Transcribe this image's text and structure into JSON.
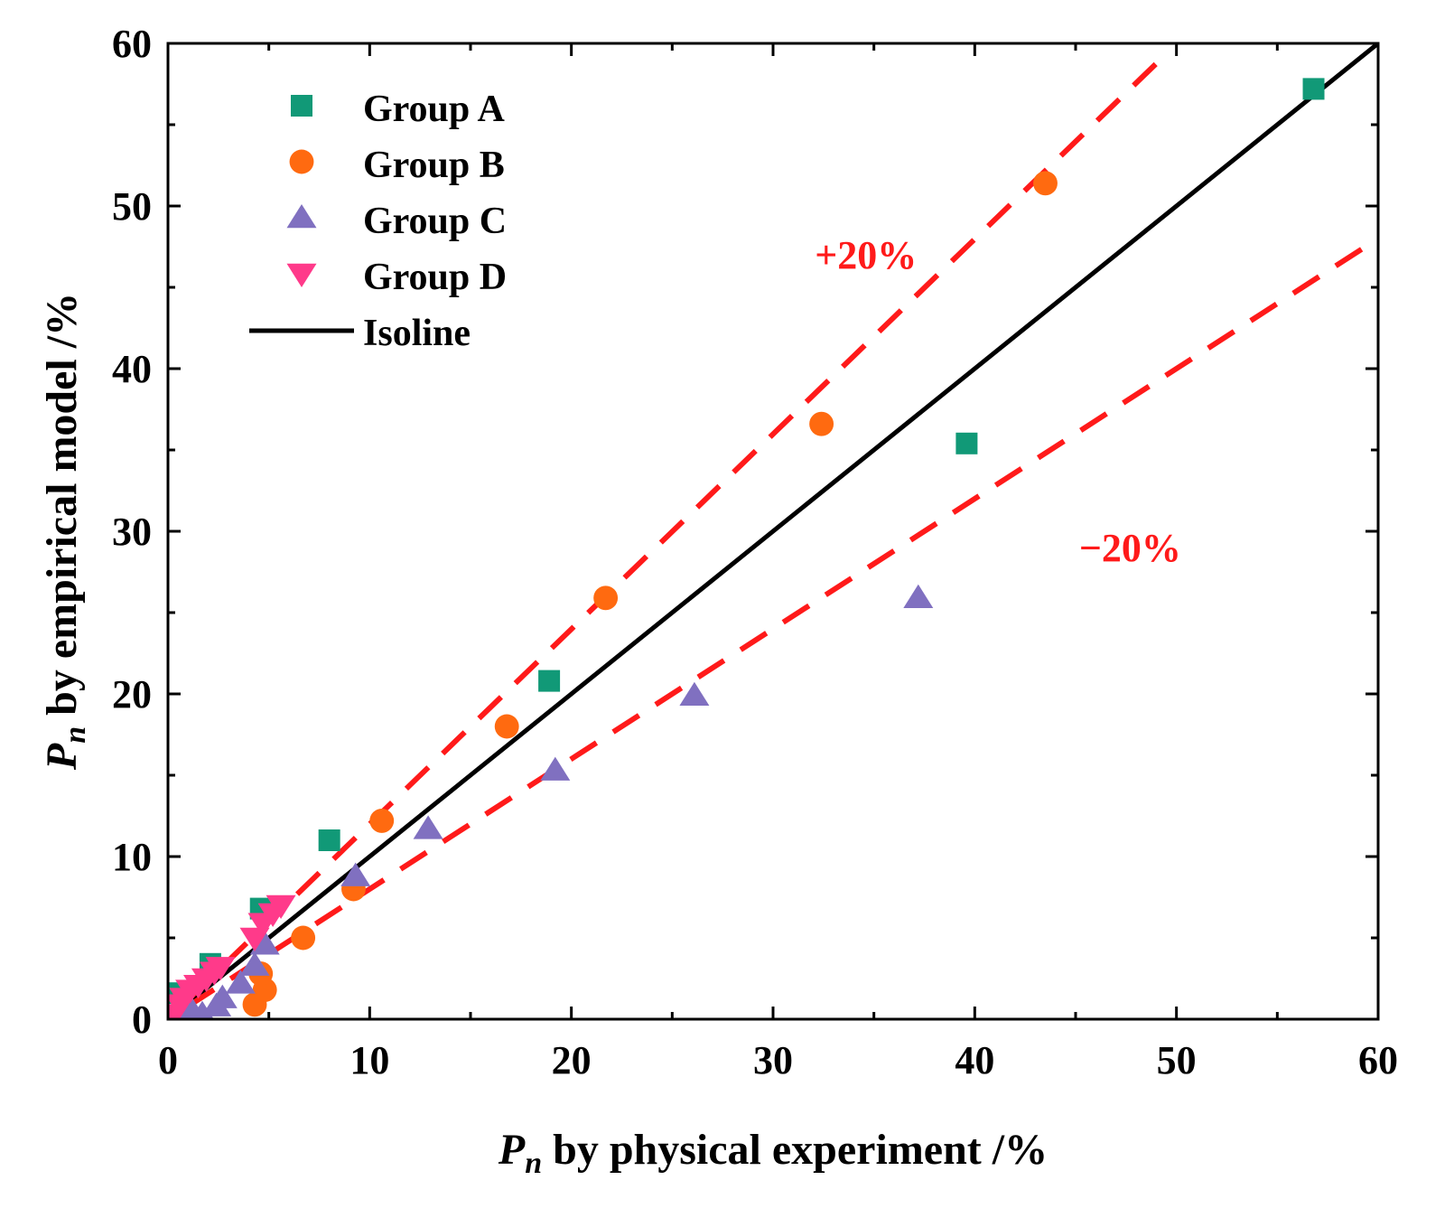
{
  "chart_data": {
    "type": "scatter",
    "title": "",
    "xlabel": {
      "main": "P",
      "sub": "n",
      "rest": " by physical experiment /%"
    },
    "ylabel": {
      "main": "P",
      "sub": "n",
      "rest": " by empirical model /%"
    },
    "xlim": [
      0,
      60
    ],
    "ylim": [
      0,
      60
    ],
    "xticks": [
      0,
      10,
      20,
      30,
      40,
      50,
      60
    ],
    "yticks": [
      0,
      10,
      20,
      30,
      40,
      50,
      60
    ],
    "xtick_labels": [
      "0",
      "10",
      "20",
      "30",
      "40",
      "50",
      "60"
    ],
    "ytick_labels": [
      "0",
      "10",
      "20",
      "30",
      "40",
      "50",
      "60"
    ],
    "grid": false,
    "legend_position": "top-left",
    "series": [
      {
        "name": "Group A",
        "marker": "square",
        "color": "#119977",
        "points": [
          [
            0.4,
            1.6
          ],
          [
            2.1,
            3.4
          ],
          [
            4.6,
            6.8
          ],
          [
            8.0,
            11.0
          ],
          [
            18.9,
            20.8
          ],
          [
            39.6,
            35.4
          ],
          [
            56.8,
            57.2
          ]
        ]
      },
      {
        "name": "Group B",
        "marker": "circle",
        "color": "#ff6a10",
        "points": [
          [
            4.3,
            0.9
          ],
          [
            4.8,
            1.8
          ],
          [
            4.6,
            2.8
          ],
          [
            6.7,
            5.0
          ],
          [
            9.2,
            8.0
          ],
          [
            10.6,
            12.2
          ],
          [
            16.8,
            18.0
          ],
          [
            21.7,
            25.9
          ],
          [
            32.4,
            36.6
          ],
          [
            43.5,
            51.4
          ]
        ]
      },
      {
        "name": "Group C",
        "marker": "triangle-up",
        "color": "#8070c0",
        "points": [
          [
            1.2,
            0.5
          ],
          [
            1.7,
            0.3
          ],
          [
            2.4,
            0.8
          ],
          [
            2.7,
            1.3
          ],
          [
            3.6,
            2.2
          ],
          [
            4.3,
            3.3
          ],
          [
            4.8,
            4.6
          ],
          [
            9.3,
            8.8
          ],
          [
            12.9,
            11.7
          ],
          [
            19.2,
            15.3
          ],
          [
            26.1,
            19.9
          ],
          [
            37.2,
            25.9
          ]
        ]
      },
      {
        "name": "Group D",
        "marker": "triangle-down",
        "color": "#ff3a8a",
        "points": [
          [
            0.3,
            0.3
          ],
          [
            0.6,
            0.9
          ],
          [
            0.8,
            1.3
          ],
          [
            1.1,
            1.8
          ],
          [
            1.5,
            2.1
          ],
          [
            1.9,
            2.5
          ],
          [
            2.3,
            2.9
          ],
          [
            2.6,
            3.2
          ],
          [
            4.3,
            5.0
          ],
          [
            4.7,
            5.9
          ],
          [
            5.2,
            6.5
          ],
          [
            5.6,
            7.0
          ]
        ]
      }
    ],
    "lines": [
      {
        "name": "Isoline",
        "style": "solid",
        "color": "#000000",
        "x": [
          1.0,
          60.0
        ],
        "y": [
          1.0,
          60.0
        ]
      },
      {
        "name": "+20%",
        "style": "dashed",
        "color": "#ff1a1a",
        "x": [
          1.0,
          49.2
        ],
        "y": [
          1.2,
          59.0
        ]
      },
      {
        "name": "-20%",
        "style": "dashed",
        "color": "#ff1a1a",
        "x": [
          1.0,
          60.0
        ],
        "y": [
          0.8,
          48.0
        ]
      }
    ],
    "legend": [
      {
        "label": "Group A",
        "kind": "square",
        "color": "#119977"
      },
      {
        "label": "Group B",
        "kind": "circle",
        "color": "#ff6a10"
      },
      {
        "label": "Group C",
        "kind": "triangle-up",
        "color": "#8070c0"
      },
      {
        "label": "Group D",
        "kind": "triangle-down",
        "color": "#ff3a8a"
      },
      {
        "label": "Isoline",
        "kind": "line",
        "color": "#000000"
      }
    ],
    "annotations": [
      {
        "text": "+20%",
        "x": 34.6,
        "y": 47.0,
        "color": "#ff1a1a"
      },
      {
        "text": "−20%",
        "x": 47.7,
        "y": 29.0,
        "color": "#ff1a1a"
      }
    ]
  }
}
